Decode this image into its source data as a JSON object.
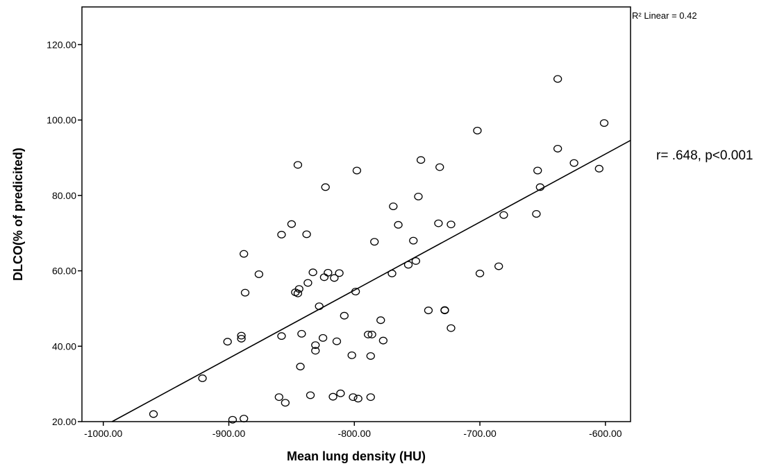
{
  "chart_data": {
    "type": "scatter",
    "xlabel": "Mean lung density (HU)",
    "ylabel": "DLCO(% of predicited)",
    "xlim": [
      -1017,
      -580
    ],
    "ylim": [
      20,
      130
    ],
    "x_ticks": [
      -1000,
      -900,
      -800,
      -700,
      -600
    ],
    "x_tick_labels": [
      "-1000.00",
      "-900.00",
      "-800.00",
      "-700.00",
      "-600.00"
    ],
    "y_ticks": [
      20,
      40,
      60,
      80,
      100,
      120
    ],
    "y_tick_labels": [
      "20.00",
      "40.00",
      "60.00",
      "80.00",
      "100.00",
      "120.00"
    ],
    "grid": false,
    "fit_line": {
      "label": "R² Linear = 0.42",
      "x": [
        -993,
        -580
      ],
      "y": [
        20,
        94.6
      ]
    },
    "annotation": "r= .648, p<0.001",
    "points": [
      [
        -960,
        22
      ],
      [
        -921,
        31.5
      ],
      [
        -901,
        41.2
      ],
      [
        -897,
        20.5
      ],
      [
        -888,
        20.8
      ],
      [
        -890,
        42
      ],
      [
        -890,
        42.8
      ],
      [
        -888,
        64.5
      ],
      [
        -887,
        54.2
      ],
      [
        -876,
        59.1
      ],
      [
        -860,
        26.5
      ],
      [
        -858,
        42.7
      ],
      [
        -858,
        69.6
      ],
      [
        -855,
        25
      ],
      [
        -850,
        72.4
      ],
      [
        -847,
        54.3
      ],
      [
        -845,
        88.1
      ],
      [
        -845,
        54
      ],
      [
        -844,
        55.2
      ],
      [
        -843,
        34.6
      ],
      [
        -842,
        43.3
      ],
      [
        -838,
        69.7
      ],
      [
        -837,
        56.8
      ],
      [
        -835,
        27
      ],
      [
        -833,
        59.6
      ],
      [
        -831,
        40.3
      ],
      [
        -831,
        38.8
      ],
      [
        -828,
        50.6
      ],
      [
        -825,
        42.2
      ],
      [
        -824,
        58.3
      ],
      [
        -823,
        82.2
      ],
      [
        -821,
        59.5
      ],
      [
        -817,
        26.6
      ],
      [
        -816,
        58.1
      ],
      [
        -814,
        41.3
      ],
      [
        -812,
        59.4
      ],
      [
        -811,
        27.5
      ],
      [
        -808,
        48.1
      ],
      [
        -802,
        37.6
      ],
      [
        -801,
        26.5
      ],
      [
        -799,
        54.5
      ],
      [
        -798,
        86.6
      ],
      [
        -797,
        26.1
      ],
      [
        -789,
        43.1
      ],
      [
        -787,
        26.5
      ],
      [
        -787,
        37.4
      ],
      [
        -786,
        43.1
      ],
      [
        -784,
        67.7
      ],
      [
        -779,
        46.9
      ],
      [
        -777,
        41.5
      ],
      [
        -770,
        59.3
      ],
      [
        -769,
        77.1
      ],
      [
        -765,
        72.2
      ],
      [
        -757,
        61.6
      ],
      [
        -753,
        68
      ],
      [
        -751,
        62.6
      ],
      [
        -749,
        79.7
      ],
      [
        -747,
        89.4
      ],
      [
        -741,
        49.5
      ],
      [
        -733,
        72.6
      ],
      [
        -732,
        87.5
      ],
      [
        -728,
        49.6
      ],
      [
        -728,
        49.5
      ],
      [
        -723,
        72.3
      ],
      [
        -723,
        44.8
      ],
      [
        -702,
        97.2
      ],
      [
        -700,
        59.3
      ],
      [
        -685,
        61.2
      ],
      [
        -681,
        74.8
      ],
      [
        -655,
        75.1
      ],
      [
        -654,
        86.6
      ],
      [
        -652,
        82.2
      ],
      [
        -638,
        110.9
      ],
      [
        -638,
        92.4
      ],
      [
        -625,
        88.6
      ],
      [
        -605,
        87.1
      ],
      [
        -601,
        99.2
      ]
    ]
  }
}
